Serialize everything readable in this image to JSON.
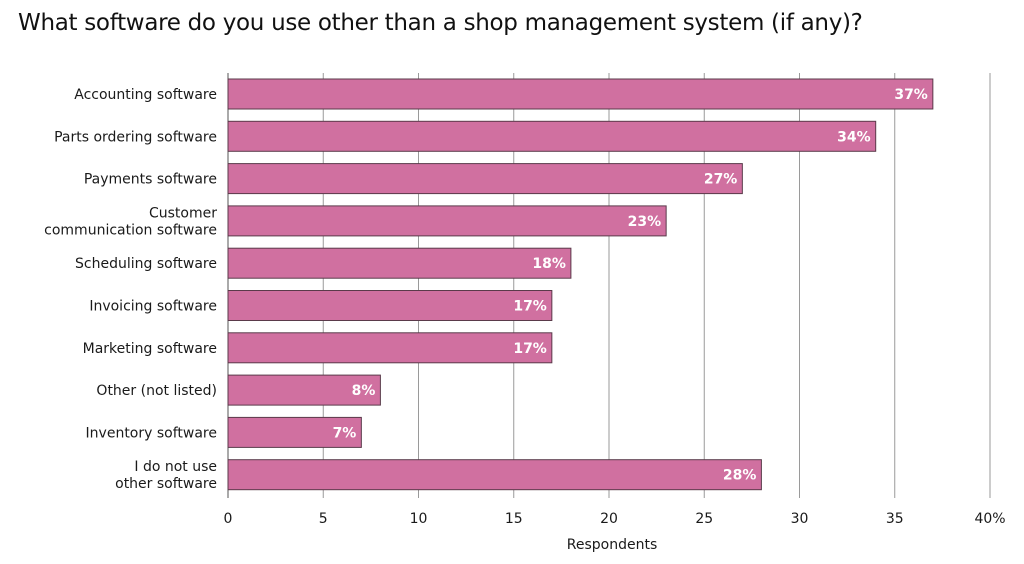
{
  "chart_data": {
    "type": "bar",
    "orientation": "horizontal",
    "title": "What software do you use other than a shop management system (if any)?",
    "xlabel": "Respondents",
    "ylabel": "",
    "xlim": [
      0,
      40
    ],
    "x_ticks": [
      "0",
      "5",
      "10",
      "15",
      "20",
      "25",
      "30",
      "35",
      "40%"
    ],
    "grid": "vertical",
    "bar_color": "#d070a0",
    "bar_edge_color": "#5a3a4a",
    "categories": [
      "Accounting software",
      "Parts ordering software",
      "Payments software",
      "Customer communication software",
      "Scheduling software",
      "Invoicing software",
      "Marketing software",
      "Other (not listed)",
      "Inventory software",
      "I do not use other software"
    ],
    "category_lines": [
      [
        "Accounting software"
      ],
      [
        "Parts ordering software"
      ],
      [
        "Payments software"
      ],
      [
        "Customer",
        "communication software"
      ],
      [
        "Scheduling software"
      ],
      [
        "Invoicing software"
      ],
      [
        "Marketing software"
      ],
      [
        "Other (not listed)"
      ],
      [
        "Inventory software"
      ],
      [
        "I do not use",
        "other software"
      ]
    ],
    "values": [
      37,
      34,
      27,
      23,
      18,
      17,
      17,
      8,
      7,
      28
    ],
    "data_labels": [
      "37%",
      "34%",
      "27%",
      "23%",
      "18%",
      "17%",
      "17%",
      "8%",
      "7%",
      "28%"
    ]
  }
}
